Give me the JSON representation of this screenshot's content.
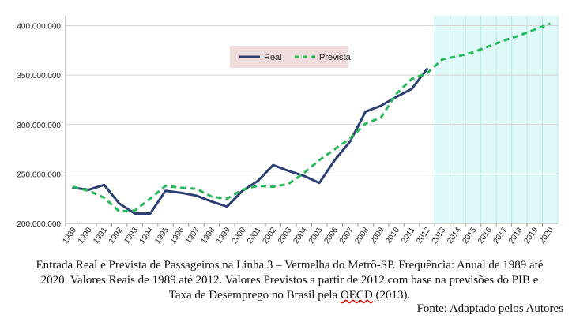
{
  "chart_data": {
    "type": "line",
    "x": [
      "1989",
      "1990",
      "1991",
      "1992",
      "1993",
      "1994",
      "1995",
      "1996",
      "1997",
      "1998",
      "1999",
      "2000",
      "2001",
      "2002",
      "2003",
      "2004",
      "2005",
      "2006",
      "2007",
      "2008",
      "2009",
      "2010",
      "2011",
      "2012",
      "2013",
      "2014",
      "2015",
      "2016",
      "2017",
      "2018",
      "2019",
      "2020"
    ],
    "series": [
      {
        "name": "Real",
        "color": "#2b3f73",
        "style": "solid",
        "values": [
          236000000,
          234000000,
          239000000,
          220000000,
          210000000,
          210000000,
          233000000,
          231000000,
          228000000,
          222000000,
          217000000,
          233000000,
          243000000,
          259000000,
          253000000,
          248000000,
          241000000,
          264000000,
          283000000,
          313000000,
          319000000,
          328000000,
          336000000,
          356000000,
          null,
          null,
          null,
          null,
          null,
          null,
          null,
          null
        ]
      },
      {
        "name": "Prevista",
        "color": "#26b85a",
        "style": "dashed",
        "values": [
          237000000,
          233000000,
          226000000,
          212000000,
          213000000,
          225000000,
          238000000,
          236000000,
          235000000,
          227000000,
          225000000,
          234000000,
          238000000,
          237000000,
          240000000,
          251000000,
          264000000,
          275000000,
          286000000,
          301000000,
          307000000,
          331000000,
          346000000,
          352000000,
          366000000,
          369000000,
          373000000,
          379000000,
          385000000,
          390000000,
          396000000,
          402000000
        ]
      }
    ],
    "y_ticks": [
      "400.000.000",
      "350.000.000",
      "300.000.000",
      "250.000.000",
      "200.000.000"
    ],
    "y_tick_values": [
      400000000,
      350000000,
      300000000,
      250000000,
      200000000
    ],
    "ylim": [
      200000000,
      410000000
    ],
    "forecast_region": {
      "from": "2013",
      "to": "2020",
      "color": "#dff8f8"
    },
    "grid": "horizontal",
    "legend": "top-center"
  },
  "caption": {
    "line1": "Entrada Real e Prevista de Passageiros na Linha 3 – Vermelha do Metrô-SP. Frequência: Anual de 1989 até",
    "line2": "2020. Valores Reais de 1989 até 2012. Valores Previstos a partir de 2012 com base na previsões do PIB e",
    "line3_before": "Taxa de Desemprego no Brasil pela ",
    "line3_oecd": "OECD",
    "line3_after": " (2013).",
    "source": "Fonte: Adaptado pelos Autores"
  }
}
